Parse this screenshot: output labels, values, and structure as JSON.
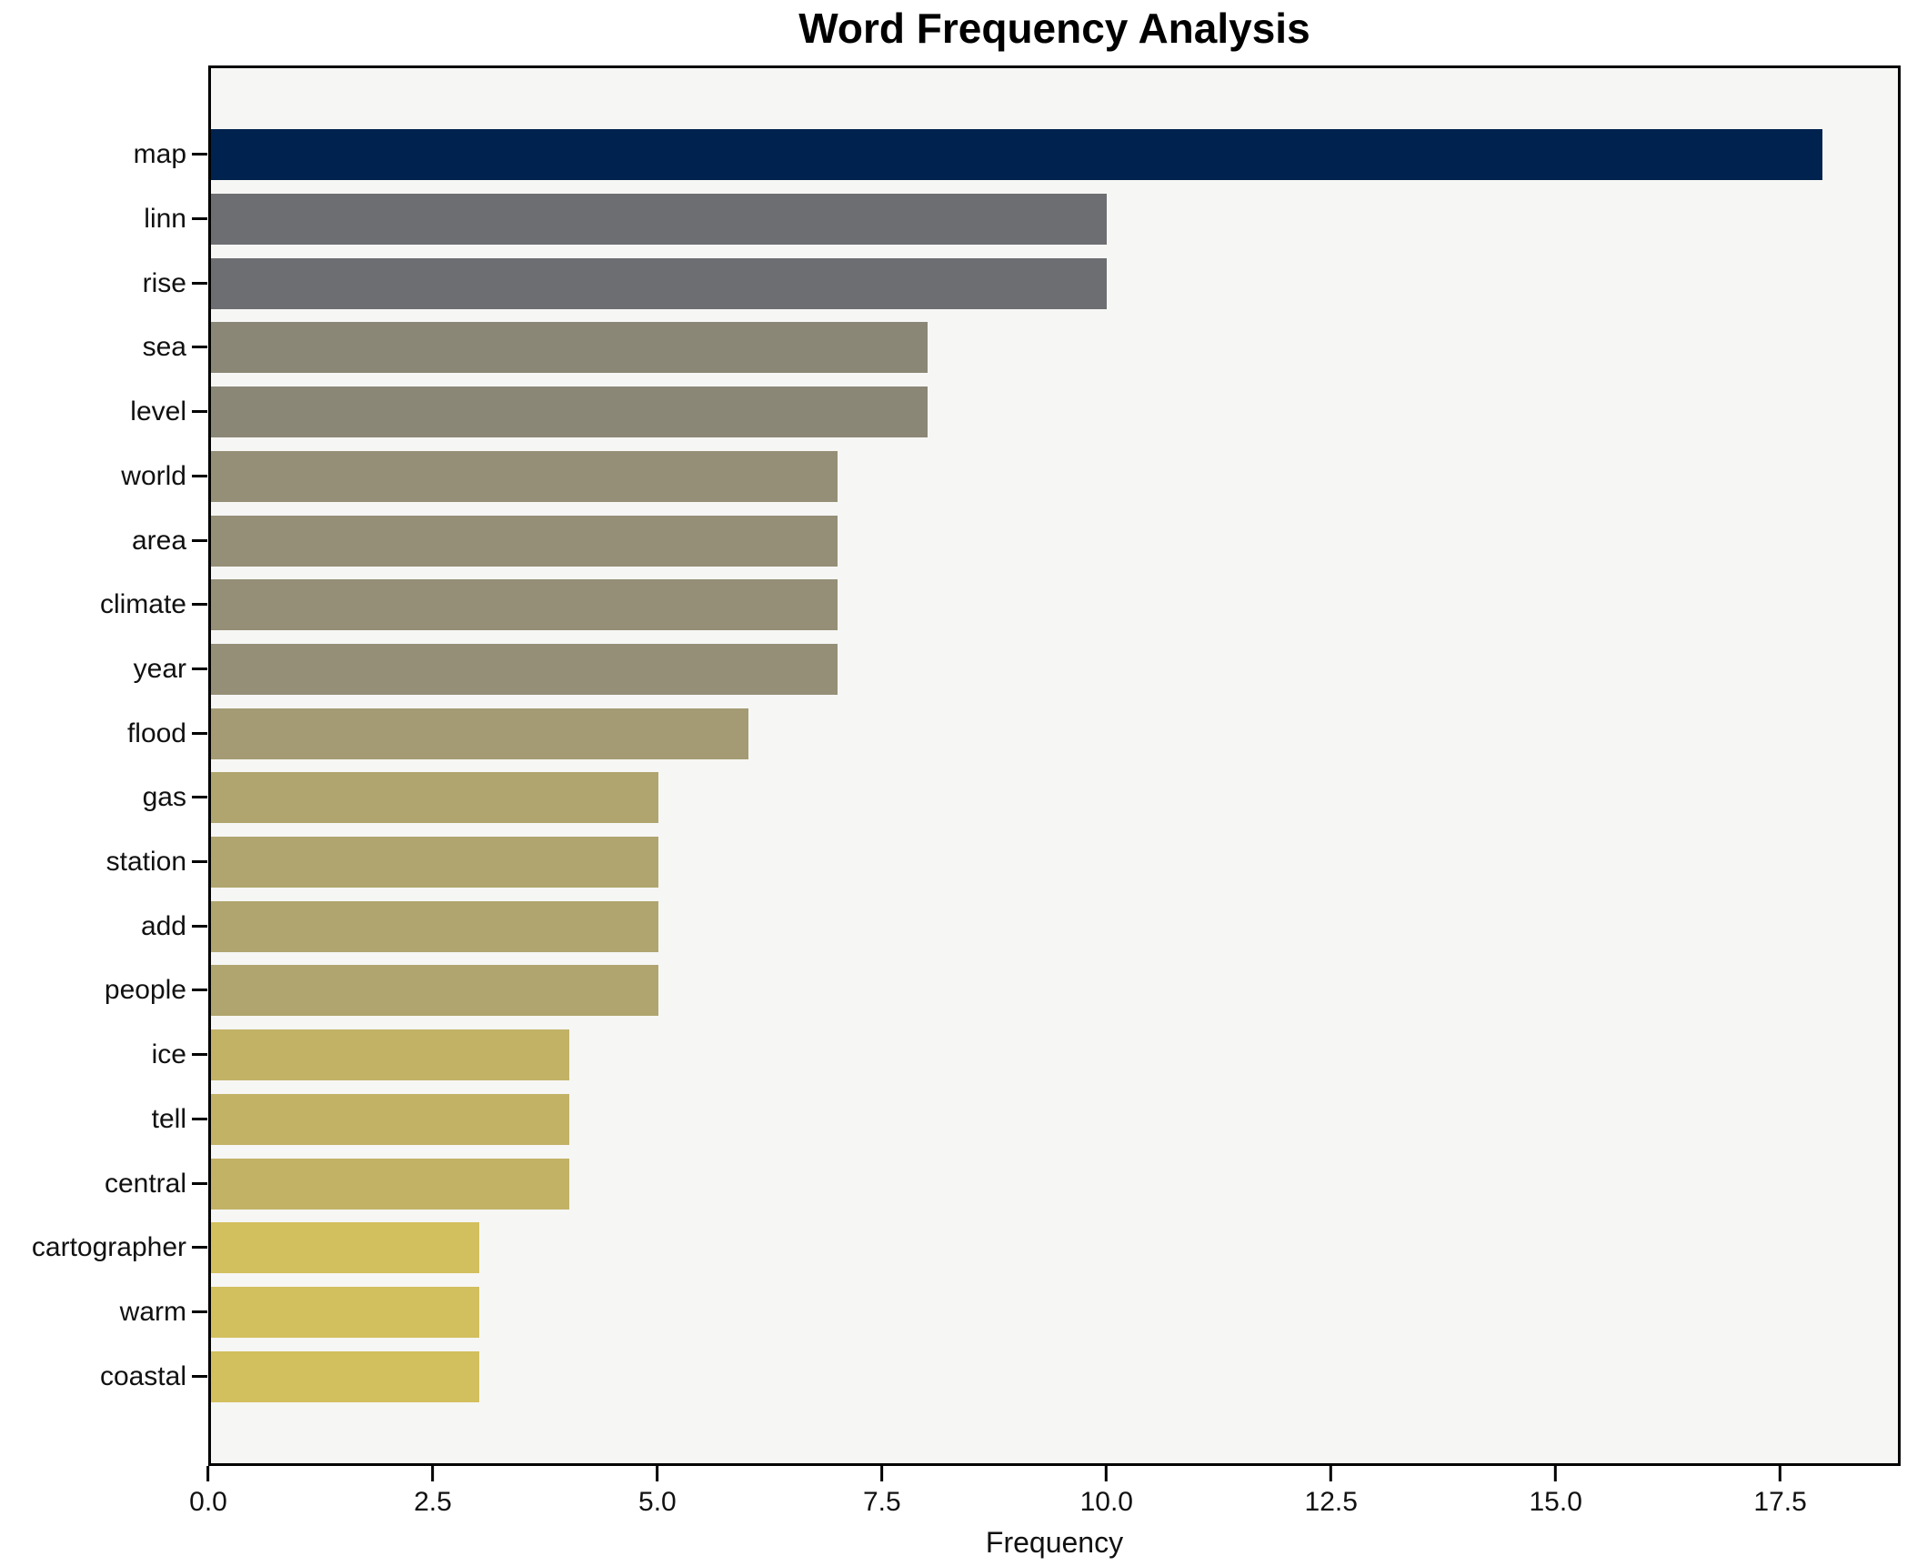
{
  "figure": {
    "title": "Word Frequency Analysis"
  },
  "chart_data": {
    "type": "bar",
    "orientation": "horizontal",
    "title": "Word Frequency Analysis",
    "xlabel": "Frequency",
    "ylabel": "",
    "categories": [
      "map",
      "linn",
      "rise",
      "sea",
      "level",
      "world",
      "area",
      "climate",
      "year",
      "flood",
      "gas",
      "station",
      "add",
      "people",
      "ice",
      "tell",
      "central",
      "cartographer",
      "warm",
      "coastal"
    ],
    "values": [
      18,
      10,
      10,
      8,
      8,
      7,
      7,
      7,
      7,
      6,
      5,
      5,
      5,
      5,
      4,
      4,
      4,
      3,
      3,
      3
    ],
    "bar_colors": [
      "#00224e",
      "#6d6e71",
      "#6d6e71",
      "#8a8777",
      "#8a8777",
      "#958f77",
      "#958f77",
      "#958f77",
      "#958f77",
      "#a49b74",
      "#b0a56e",
      "#b0a56e",
      "#b0a56e",
      "#b0a56e",
      "#c1b266",
      "#c1b266",
      "#c1b266",
      "#d2bf5e",
      "#d2bf5e",
      "#d2bf5e"
    ],
    "xlim": [
      0,
      18.84
    ],
    "xticks": [
      0,
      2.5,
      5,
      7.5,
      10,
      12.5,
      15,
      17.5
    ],
    "xtick_labels": [
      "0.0",
      "2.5",
      "5.0",
      "7.5",
      "10.0",
      "12.5",
      "15.0",
      "17.5"
    ],
    "grid": false,
    "legend": null,
    "plot_background": "#f6f6f4",
    "figure_background": "#ffffff",
    "axis_color": "#000000"
  }
}
